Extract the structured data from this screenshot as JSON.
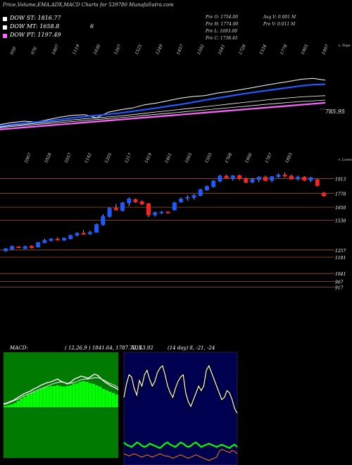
{
  "header": {
    "title": "Price,Volume,EMA,ADX,MACD Charts for 539780  MunafaSutra.com"
  },
  "legend": [
    {
      "label": "DOW ST: 1816.77",
      "color": "#ffffff"
    },
    {
      "label": "DOW MT: 1658.8",
      "color": "#ffffff"
    },
    {
      "label": "DOW PT: 1197.49",
      "color": "#ff66ff"
    }
  ],
  "legend_extra": "6",
  "ohlc": {
    "open": "Pre   O: 1754.00",
    "high": "Pre   H: 1774.90",
    "low": "Pre   L: 1693.00",
    "close": "Pre   C: 1738.45",
    "avg_vol": "Avg V: 0.001 M",
    "pre_vol": "Pre   V: 0.011 M"
  },
  "colors": {
    "up": "#1e5aff",
    "down": "#ff2020",
    "level": "#a0522d",
    "macd_bg": "#007a00",
    "adx_bg": "#000050"
  },
  "chart_data": [
    {
      "type": "line",
      "name": "ema-panel",
      "top_ticks": [
        "950",
        "976",
        "1007",
        "1119",
        "1030",
        "1267",
        "1525",
        "1249",
        "1457",
        "1592",
        "1641",
        "1728",
        "1534",
        "1778",
        "1905",
        "1997"
      ],
      "corner_label": "< Tope",
      "last_value_label": "785.95",
      "series": [
        {
          "color": "#ffffff",
          "values": [
            600,
            612,
            620,
            615,
            630,
            645,
            655,
            660,
            640,
            675,
            690,
            700,
            720,
            730,
            745,
            760,
            770,
            775,
            790,
            800,
            812,
            825,
            838,
            850,
            862,
            875,
            880,
            870
          ]
        },
        {
          "color": "#1e5aff",
          "values": [
            590,
            600,
            608,
            614,
            622,
            630,
            640,
            648,
            655,
            662,
            670,
            680,
            690,
            700,
            712,
            722,
            735,
            748,
            760,
            772,
            784,
            795,
            805,
            815,
            825,
            835,
            842,
            845
          ]
        },
        {
          "color": "#ffffff",
          "values": [
            585,
            594,
            600,
            608,
            614,
            620,
            628,
            634,
            640,
            646,
            652,
            660,
            668,
            676,
            684,
            692,
            700,
            708,
            716,
            724,
            732,
            740,
            748,
            756,
            762,
            768,
            772,
            775
          ]
        },
        {
          "color": "#ffffff",
          "values": [
            580,
            588,
            594,
            600,
            606,
            612,
            618,
            624,
            630,
            636,
            642,
            648,
            655,
            662,
            668,
            675,
            682,
            688,
            695,
            702,
            708,
            715,
            722,
            728,
            734,
            740,
            744,
            748
          ]
        },
        {
          "color": "#ff66ff",
          "values": [
            570,
            576,
            582,
            588,
            594,
            600,
            606,
            612,
            618,
            624,
            630,
            636,
            642,
            648,
            654,
            660,
            666,
            672,
            678,
            684,
            690,
            696,
            702,
            708,
            714,
            720,
            726,
            732
          ]
        }
      ]
    },
    {
      "type": "candlestick",
      "name": "price-panel",
      "top_ticks": [
        "1007",
        "1028",
        "1057",
        "1142",
        "1205",
        "1217",
        "1419",
        "1461",
        "1603",
        "1593",
        "1708",
        "1996",
        "1787",
        "1883"
      ],
      "corner_label": "< Lowes",
      "right_levels": [
        {
          "label": "1913",
          "value": 1913
        },
        {
          "label": "1778",
          "value": 1778
        },
        {
          "label": "1650",
          "value": 1650
        },
        {
          "label": "1530",
          "value": 1530
        },
        {
          "label": "1257",
          "value": 1257
        },
        {
          "label": "1191",
          "value": 1191
        },
        {
          "label": "1041",
          "value": 1041
        },
        {
          "label": "967",
          "value": 967
        },
        {
          "label": "917",
          "value": 917
        }
      ],
      "ylim": [
        900,
        2000
      ],
      "candles": [
        {
          "o": 1250,
          "h": 1275,
          "l": 1240,
          "c": 1268
        },
        {
          "o": 1265,
          "h": 1298,
          "l": 1258,
          "c": 1290
        },
        {
          "o": 1285,
          "h": 1292,
          "l": 1276,
          "c": 1282
        },
        {
          "o": 1270,
          "h": 1296,
          "l": 1265,
          "c": 1288
        },
        {
          "o": 1290,
          "h": 1300,
          "l": 1270,
          "c": 1278
        },
        {
          "o": 1285,
          "h": 1330,
          "l": 1278,
          "c": 1325
        },
        {
          "o": 1325,
          "h": 1360,
          "l": 1318,
          "c": 1345
        },
        {
          "o": 1345,
          "h": 1365,
          "l": 1335,
          "c": 1358
        },
        {
          "o": 1355,
          "h": 1375,
          "l": 1346,
          "c": 1348
        },
        {
          "o": 1348,
          "h": 1372,
          "l": 1340,
          "c": 1365
        },
        {
          "o": 1360,
          "h": 1398,
          "l": 1355,
          "c": 1390
        },
        {
          "o": 1395,
          "h": 1420,
          "l": 1380,
          "c": 1410
        },
        {
          "o": 1410,
          "h": 1440,
          "l": 1398,
          "c": 1402
        },
        {
          "o": 1405,
          "h": 1435,
          "l": 1395,
          "c": 1418
        },
        {
          "o": 1420,
          "h": 1500,
          "l": 1415,
          "c": 1490
        },
        {
          "o": 1490,
          "h": 1585,
          "l": 1480,
          "c": 1565
        },
        {
          "o": 1565,
          "h": 1650,
          "l": 1555,
          "c": 1640
        },
        {
          "o": 1640,
          "h": 1680,
          "l": 1620,
          "c": 1625
        },
        {
          "o": 1620,
          "h": 1700,
          "l": 1610,
          "c": 1690
        },
        {
          "o": 1690,
          "h": 1740,
          "l": 1660,
          "c": 1725
        },
        {
          "o": 1720,
          "h": 1730,
          "l": 1690,
          "c": 1700
        },
        {
          "o": 1700,
          "h": 1712,
          "l": 1670,
          "c": 1680
        },
        {
          "o": 1680,
          "h": 1690,
          "l": 1560,
          "c": 1580
        },
        {
          "o": 1580,
          "h": 1610,
          "l": 1565,
          "c": 1600
        },
        {
          "o": 1600,
          "h": 1615,
          "l": 1585,
          "c": 1605
        },
        {
          "o": 1605,
          "h": 1612,
          "l": 1590,
          "c": 1598
        },
        {
          "o": 1625,
          "h": 1700,
          "l": 1620,
          "c": 1690
        },
        {
          "o": 1700,
          "h": 1740,
          "l": 1690,
          "c": 1725
        },
        {
          "o": 1735,
          "h": 1760,
          "l": 1710,
          "c": 1740
        },
        {
          "o": 1740,
          "h": 1770,
          "l": 1722,
          "c": 1758
        },
        {
          "o": 1758,
          "h": 1820,
          "l": 1750,
          "c": 1810
        },
        {
          "o": 1810,
          "h": 1850,
          "l": 1800,
          "c": 1840
        },
        {
          "o": 1840,
          "h": 1900,
          "l": 1830,
          "c": 1890
        },
        {
          "o": 1890,
          "h": 1948,
          "l": 1880,
          "c": 1935
        },
        {
          "o": 1935,
          "h": 1950,
          "l": 1915,
          "c": 1920
        },
        {
          "o": 1915,
          "h": 1945,
          "l": 1895,
          "c": 1938
        },
        {
          "o": 1940,
          "h": 1950,
          "l": 1900,
          "c": 1915
        },
        {
          "o": 1910,
          "h": 1925,
          "l": 1870,
          "c": 1880
        },
        {
          "o": 1880,
          "h": 1918,
          "l": 1872,
          "c": 1905
        },
        {
          "o": 1905,
          "h": 1935,
          "l": 1880,
          "c": 1925
        },
        {
          "o": 1925,
          "h": 1940,
          "l": 1890,
          "c": 1895
        },
        {
          "o": 1898,
          "h": 1935,
          "l": 1880,
          "c": 1930
        },
        {
          "o": 1930,
          "h": 1960,
          "l": 1920,
          "c": 1945
        },
        {
          "o": 1945,
          "h": 1970,
          "l": 1925,
          "c": 1935
        },
        {
          "o": 1935,
          "h": 1950,
          "l": 1900,
          "c": 1910
        },
        {
          "o": 1910,
          "h": 1940,
          "l": 1895,
          "c": 1925
        },
        {
          "o": 1925,
          "h": 1935,
          "l": 1890,
          "c": 1898
        },
        {
          "o": 1898,
          "h": 1930,
          "l": 1880,
          "c": 1920
        },
        {
          "o": 1900,
          "h": 1910,
          "l": 1840,
          "c": 1850
        },
        {
          "o": 1780,
          "h": 1790,
          "l": 1745,
          "c": 1755
        }
      ]
    },
    {
      "type": "area",
      "name": "macd-panel",
      "title": "MACD:",
      "params": "( 12,26,9 ) 1841.64,  1787.72,  53.92",
      "series": [
        {
          "name": "histogram",
          "color": "#00ff00",
          "values": [
            2,
            3,
            4,
            6,
            9,
            12,
            15,
            18,
            20,
            22,
            24,
            26,
            28,
            29,
            30,
            30,
            31,
            30,
            29,
            30,
            31,
            33,
            34,
            36,
            37,
            36,
            34,
            33,
            31,
            29,
            26,
            24,
            22,
            20,
            18
          ]
        },
        {
          "name": "macd",
          "color": "#ffffff",
          "values": [
            5,
            6,
            8,
            10,
            13,
            16,
            19,
            21,
            23,
            26,
            28,
            31,
            33,
            35,
            36,
            38,
            40,
            37,
            35,
            33,
            36,
            40,
            42,
            44,
            43,
            41,
            44,
            47,
            45,
            40,
            36,
            33,
            30,
            28,
            25
          ]
        },
        {
          "name": "signal",
          "color": "#ffffff",
          "values": [
            4,
            5,
            7,
            9,
            11,
            13,
            16,
            18,
            20,
            22,
            24,
            26,
            28,
            30,
            32,
            34,
            35,
            36,
            35,
            34,
            34,
            35,
            37,
            39,
            40,
            40,
            41,
            42,
            42,
            40,
            38,
            35,
            33,
            31,
            28
          ]
        }
      ]
    },
    {
      "type": "line",
      "name": "adx-panel",
      "title": "ADX",
      "params": "(14 day) 8, -21, -24",
      "series": [
        {
          "name": "di-plus",
          "color": "#ffffff",
          "values": [
            60,
            72,
            80,
            78,
            68,
            62,
            75,
            70,
            80,
            84,
            76,
            70,
            74,
            82,
            86,
            88,
            80,
            70,
            64,
            60,
            68,
            74,
            78,
            80,
            64,
            56,
            52,
            58,
            64,
            70,
            66,
            70,
            84,
            88,
            82,
            76,
            70,
            64,
            58,
            60,
            66,
            64,
            58,
            50,
            46
          ]
        },
        {
          "name": "adx",
          "color": "#00ff00",
          "values": [
            20,
            18,
            17,
            16,
            18,
            20,
            19,
            17,
            16,
            17,
            19,
            18,
            17,
            16,
            15,
            17,
            19,
            20,
            18,
            17,
            16,
            18,
            20,
            19,
            17,
            16,
            17,
            19,
            20,
            18,
            16,
            17,
            18,
            19,
            18,
            17,
            16,
            17,
            18,
            17,
            16,
            15,
            17,
            18,
            16
          ]
        },
        {
          "name": "di-minus",
          "color": "#ff8000",
          "values": [
            10,
            9,
            8,
            9,
            10,
            9,
            8,
            7,
            8,
            9,
            8,
            7,
            8,
            9,
            10,
            9,
            8,
            8,
            7,
            6,
            7,
            8,
            9,
            8,
            7,
            6,
            7,
            8,
            9,
            8,
            7,
            6,
            5,
            4,
            5,
            6,
            7,
            12,
            14,
            13,
            12,
            11,
            13,
            12,
            10
          ]
        }
      ]
    }
  ]
}
